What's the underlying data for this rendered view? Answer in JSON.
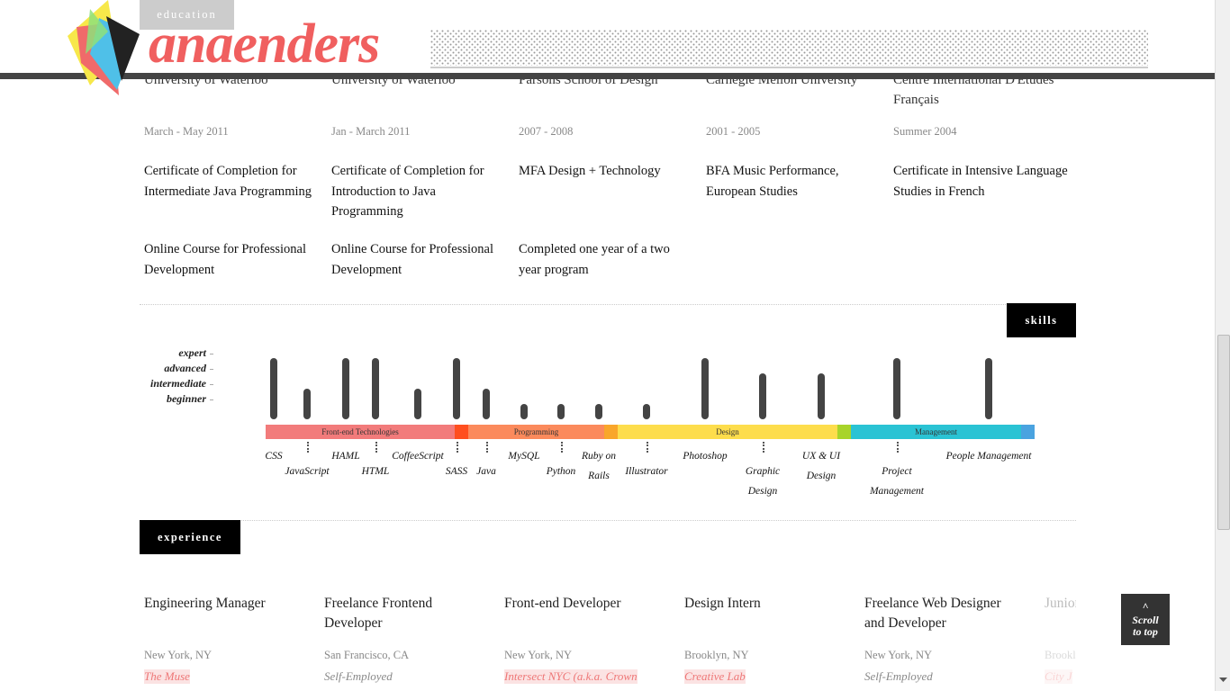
{
  "header": {
    "tab": "education",
    "logo_text": "anaenders"
  },
  "education": [
    {
      "school": "University of Waterloo",
      "date": "March - May 2011",
      "items": [
        "Certificate of Completion for Intermediate Java Programming",
        "Online Course for Professional Development"
      ]
    },
    {
      "school": "University of Waterloo",
      "date": "Jan - March 2011",
      "items": [
        "Certificate of Completion for Introduction to Java Programming",
        "Online Course for Professional Development"
      ]
    },
    {
      "school": "Parsons School of Design",
      "date": "2007 - 2008",
      "items": [
        "MFA Design + Technology",
        "Completed one year of a two year program"
      ]
    },
    {
      "school": "Carnegie Mellon University",
      "date": "2001 - 2005",
      "items": [
        "BFA Music Performance, European Studies"
      ]
    },
    {
      "school": "Centre International D'Etudes Français",
      "date": "Summer 2004",
      "items": [
        "Certificate in Intensive Language Studies in French"
      ]
    }
  ],
  "skills": {
    "tab": "skills",
    "levels": [
      "beginner",
      "intermediate",
      "advanced",
      "expert"
    ],
    "groups": [
      {
        "name": "Front-end Technologies",
        "color": "#f27b7b"
      },
      {
        "name": null,
        "color": "#ff4f1f"
      },
      {
        "name": "Programming",
        "color": "#fb8a5c"
      },
      {
        "name": null,
        "color": "#f9a62a"
      },
      {
        "name": "Design",
        "color": "#fddd4c"
      },
      {
        "name": null,
        "color": "#a8d42a"
      },
      {
        "name": "Management",
        "color": "#2ac3d4"
      },
      {
        "name": null,
        "color": "#4aa3e0"
      }
    ],
    "items": [
      {
        "name": "CSS",
        "level": 4
      },
      {
        "name": "JavaScript",
        "level": 2
      },
      {
        "name": "HAML",
        "level": 4
      },
      {
        "name": "HTML",
        "level": 4
      },
      {
        "name": "CoffeeScript",
        "level": 2
      },
      {
        "name": "SASS",
        "level": 4
      },
      {
        "name": "Java",
        "level": 2
      },
      {
        "name": "MySQL",
        "level": 1
      },
      {
        "name": "Python",
        "level": 1
      },
      {
        "name": "Ruby on Rails",
        "level": 1
      },
      {
        "name": "Illustrator",
        "level": 1
      },
      {
        "name": "Photoshop",
        "level": 4
      },
      {
        "name": "Graphic Design",
        "level": 3
      },
      {
        "name": "UX & UI Design",
        "level": 3
      },
      {
        "name": "Project Management",
        "level": 4
      },
      {
        "name": "People Management",
        "level": 4
      }
    ]
  },
  "experience": {
    "tab": "experience",
    "jobs": [
      {
        "title": "Engineering Manager",
        "location": "New York, NY",
        "company": "The Muse",
        "link": true
      },
      {
        "title": "Freelance Frontend Developer",
        "location": "San Francisco, CA",
        "company": "Self-Employed",
        "link": false
      },
      {
        "title": "Front-end Developer",
        "location": "New York, NY",
        "company": "Intersect NYC (a.k.a. Crown",
        "link": true
      },
      {
        "title": "Design Intern",
        "location": "Brooklyn, NY",
        "company": "Creative Lab",
        "link": true
      },
      {
        "title": "Freelance Web Designer and Developer",
        "location": "New York, NY",
        "company": "Self-Employed",
        "link": false
      },
      {
        "title": "Junior Webs",
        "location": "Brooklyn",
        "company": "City J",
        "link": true
      }
    ]
  },
  "scroll_top": {
    "arrow": "^",
    "label": "Scroll to top"
  }
}
